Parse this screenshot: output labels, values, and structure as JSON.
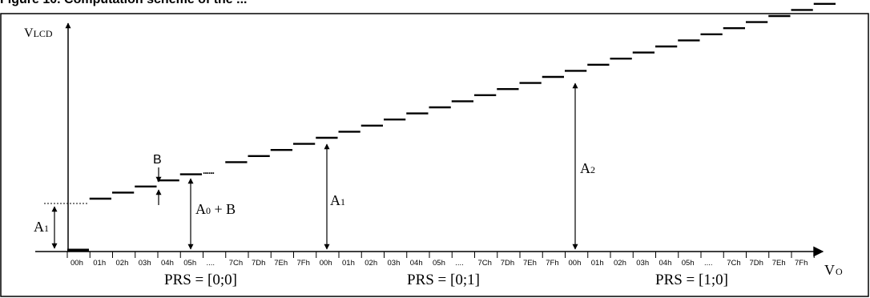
{
  "figure": {
    "caption": "Figure 10. Computation scheme of the ..."
  },
  "axes": {
    "y_label_main": "V",
    "y_label_sub": "LCD",
    "x_label_main": "V",
    "x_label_sub": "O"
  },
  "tick_labels": [
    "00h",
    "01h",
    "02h",
    "03h",
    "04h",
    "05h",
    "....",
    "7Ch",
    "7Dh",
    "7Eh",
    "7Fh",
    "00h",
    "01h",
    "02h",
    "03h",
    "04h",
    "05h",
    "....",
    "7Ch",
    "7Dh",
    "7Eh",
    "7Fh",
    "00h",
    "01h",
    "02h",
    "03h",
    "04h",
    "05h",
    "....",
    "7Ch",
    "7Dh",
    "7Eh",
    "7Fh"
  ],
  "groups": [
    {
      "label": "PRS = [0;0]"
    },
    {
      "label": "PRS = [0;1]"
    },
    {
      "label": "PRS = [1;0]"
    }
  ],
  "annotations": {
    "a1_left_main": "A",
    "a1_left_sub": "1",
    "b_label": "B",
    "a0b_main": "A",
    "a0b_sub": "0",
    "a0b_suffix": " + B",
    "a1_mid_main": "A",
    "a1_mid_sub": "1",
    "a2_main": "A",
    "a2_sub": "2",
    "ellipsis": "......"
  },
  "colors": {
    "ink": "#000000",
    "background": "#ffffff"
  }
}
